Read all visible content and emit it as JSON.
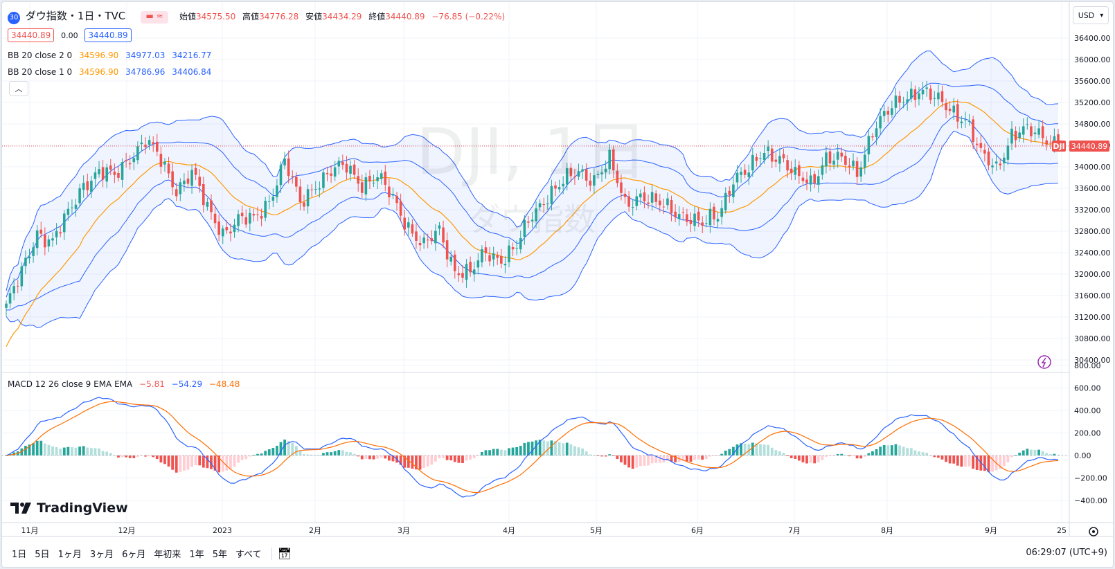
{
  "header": {
    "symbol_badge": "30",
    "title": "ダウ指数・1日・TVC",
    "ohlc_open_label": "始値",
    "ohlc_open": "34575.50",
    "ohlc_high_label": "高値",
    "ohlc_high": "34776.28",
    "ohlc_low_label": "安値",
    "ohlc_low": "34434.29",
    "ohlc_close_label": "終値",
    "ohlc_close": "34440.89",
    "change": "−76.85 (−0.22%)",
    "currency": "USD"
  },
  "trade": {
    "sell": "34440.89",
    "spread": "0.00",
    "buy": "34440.89"
  },
  "indicators": {
    "bb2_label": "BB 20 close 2 0",
    "bb2_basis": "34596.90",
    "bb2_upper": "34977.03",
    "bb2_lower": "34216.77",
    "bb1_label": "BB 20 close 1 0",
    "bb1_basis": "34596.90",
    "bb1_upper": "34786.96",
    "bb1_lower": "34406.84",
    "macd_label": "MACD 12 26 close 9 EMA EMA",
    "macd_hist": "−5.81",
    "macd_line": "−54.29",
    "macd_signal": "−48.48"
  },
  "watermark": {
    "big": "DJI, 1日",
    "small": "ダウ指数"
  },
  "price_axis": [
    "36400.00",
    "36000.00",
    "35600.00",
    "35200.00",
    "34800.00",
    "34400.00",
    "34000.00",
    "33600.00",
    "33200.00",
    "32800.00",
    "32400.00",
    "32000.00",
    "31600.00",
    "31200.00",
    "30800.00",
    "30400.00"
  ],
  "macd_axis": [
    "800.00",
    "600.00",
    "400.00",
    "200.00",
    "0.00",
    "−200.00",
    "−400.00"
  ],
  "time_axis": [
    "11月",
    "12月",
    "2023",
    "2月",
    "3月",
    "4月",
    "5月",
    "6月",
    "7月",
    "8月",
    "9月",
    "25"
  ],
  "last_price": {
    "ticker": "DJI",
    "price": "34440.89"
  },
  "timeframes": [
    "1日",
    "5日",
    "1ヶ月",
    "3ヶ月",
    "6ヶ月",
    "年初来",
    "1年",
    "5年",
    "すべて"
  ],
  "clock": "06:29:07 (UTC+9)",
  "brand": "TradingView",
  "colors": {
    "up": "#26a69a",
    "down": "#ef5350",
    "bb_basis": "#ff9800",
    "bb_band": "#2962ff",
    "macd": "#2962ff",
    "signal": "#ff6d00"
  },
  "chart_data": {
    "type": "candlestick",
    "price_ylim": [
      30400,
      36400
    ],
    "macd_ylim": [
      -400,
      800
    ],
    "closes_anchor": [
      [
        0,
        31400
      ],
      [
        4,
        32000
      ],
      [
        8,
        32800
      ],
      [
        12,
        32600
      ],
      [
        16,
        33100
      ],
      [
        20,
        33700
      ],
      [
        24,
        33900
      ],
      [
        28,
        33800
      ],
      [
        32,
        34200
      ],
      [
        36,
        34500
      ],
      [
        40,
        34100
      ],
      [
        44,
        33600
      ],
      [
        48,
        33900
      ],
      [
        52,
        33200
      ],
      [
        56,
        32800
      ],
      [
        60,
        33000
      ],
      [
        64,
        33000
      ],
      [
        68,
        33400
      ],
      [
        72,
        34100
      ],
      [
        76,
        33300
      ],
      [
        80,
        33700
      ],
      [
        84,
        33900
      ],
      [
        88,
        34000
      ],
      [
        92,
        33700
      ],
      [
        96,
        33800
      ],
      [
        100,
        33400
      ],
      [
        104,
        32900
      ],
      [
        108,
        32500
      ],
      [
        112,
        32800
      ],
      [
        116,
        32100
      ],
      [
        120,
        32000
      ],
      [
        124,
        32400
      ],
      [
        128,
        32300
      ],
      [
        132,
        32500
      ],
      [
        136,
        33100
      ],
      [
        140,
        33500
      ],
      [
        144,
        33700
      ],
      [
        148,
        33900
      ],
      [
        152,
        33800
      ],
      [
        156,
        34100
      ],
      [
        160,
        33300
      ],
      [
        164,
        33500
      ],
      [
        168,
        33300
      ],
      [
        172,
        33200
      ],
      [
        176,
        33100
      ],
      [
        180,
        32900
      ],
      [
        184,
        33100
      ],
      [
        188,
        33800
      ],
      [
        192,
        33900
      ],
      [
        196,
        34300
      ],
      [
        200,
        34200
      ],
      [
        204,
        33800
      ],
      [
        208,
        33700
      ],
      [
        212,
        34200
      ],
      [
        216,
        34100
      ],
      [
        220,
        33900
      ],
      [
        224,
        34700
      ],
      [
        228,
        35000
      ],
      [
        232,
        35300
      ],
      [
        236,
        35450
      ],
      [
        240,
        35250
      ],
      [
        244,
        35100
      ],
      [
        248,
        34900
      ],
      [
        252,
        34200
      ],
      [
        256,
        34000
      ],
      [
        260,
        34600
      ],
      [
        264,
        34650
      ],
      [
        268,
        34600
      ],
      [
        272,
        34440.89
      ]
    ]
  }
}
